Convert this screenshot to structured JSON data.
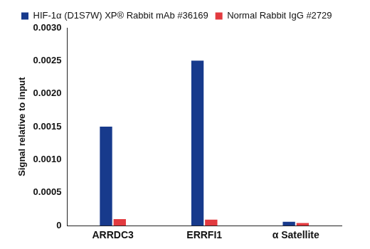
{
  "chart_data": {
    "type": "bar",
    "y_label": "Signal relative to input",
    "categories": [
      "ARRDC3",
      "ERRFI1",
      "α Satellite"
    ],
    "series": [
      {
        "name": "HIF-1α (D1S7W) XP® Rabbit mAb #36169",
        "color": "#173a8c",
        "values": [
          0.0015,
          0.0025,
          6e-05
        ]
      },
      {
        "name": "Normal Rabbit IgG #2729",
        "color": "#e23a3f",
        "values": [
          0.0001,
          9e-05,
          4e-05
        ]
      }
    ],
    "ylim": [
      0,
      0.003
    ],
    "yticks": [
      0,
      0.0005,
      {
        "value": 0.001,
        "label": "0.0010"
      },
      0.0015,
      {
        "value": 0.002,
        "label": "0.0020"
      },
      0.0025,
      {
        "value": 0.003,
        "label": "0.0030"
      }
    ],
    "grid": false,
    "legend": "top-left"
  }
}
